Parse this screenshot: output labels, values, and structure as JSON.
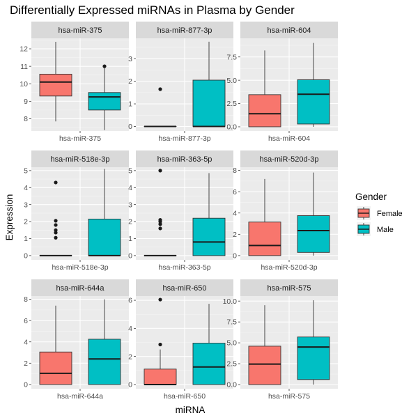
{
  "chart_data": {
    "type": "boxplot",
    "title": "Differentially Expressed miRNAs in Plasma by Gender",
    "xlabel": "miRNA",
    "ylabel": "Expression",
    "legend": {
      "title": "Gender",
      "placement": "right",
      "entries": [
        {
          "name": "Female",
          "color": "#F8766D"
        },
        {
          "name": "Male",
          "color": "#00BFC4"
        }
      ]
    },
    "facets": [
      {
        "name": "hsa-miR-375",
        "ylim": [
          7.3,
          12.6
        ],
        "yticks": [
          8,
          9,
          10,
          11,
          12
        ],
        "yticklabels": [
          "8",
          "9",
          "10",
          "11",
          "12"
        ],
        "boxes": [
          {
            "group": "Female",
            "whisker_low": 7.85,
            "q1": 9.3,
            "median": 10.1,
            "q3": 10.55,
            "whisker_high": 12.4,
            "outliers": []
          },
          {
            "group": "Male",
            "whisker_low": 7.35,
            "q1": 8.5,
            "median": 9.25,
            "q3": 9.5,
            "whisker_high": 10.9,
            "outliers": [
              11.0
            ]
          }
        ]
      },
      {
        "name": "hsa-miR-877-3p",
        "ylim": [
          -0.2,
          3.9
        ],
        "yticks": [
          0,
          1,
          2,
          3
        ],
        "yticklabels": [
          "0",
          "1",
          "2",
          "3"
        ],
        "boxes": [
          {
            "group": "Female",
            "whisker_low": 0.0,
            "q1": 0.0,
            "median": 0.0,
            "q3": 0.0,
            "whisker_high": 0.0,
            "outliers": [
              1.65
            ]
          },
          {
            "group": "Male",
            "whisker_low": 0.0,
            "q1": 0.0,
            "median": 0.0,
            "q3": 2.05,
            "whisker_high": 3.75,
            "outliers": []
          }
        ]
      },
      {
        "name": "hsa-miR-604",
        "ylim": [
          -0.45,
          9.5
        ],
        "yticks": [
          0,
          2.5,
          5,
          7.5
        ],
        "yticklabels": [
          "0.0",
          "2.5",
          "5.0",
          "7.5"
        ],
        "boxes": [
          {
            "group": "Female",
            "whisker_low": 0.0,
            "q1": 0.0,
            "median": 1.4,
            "q3": 3.45,
            "whisker_high": 8.2,
            "outliers": []
          },
          {
            "group": "Male",
            "whisker_low": 0.0,
            "q1": 0.3,
            "median": 3.5,
            "q3": 5.05,
            "whisker_high": 9.0,
            "outliers": []
          }
        ]
      },
      {
        "name": "hsa-miR-518e-3p",
        "ylim": [
          -0.25,
          5.2
        ],
        "yticks": [
          0,
          1,
          2,
          3,
          4,
          5
        ],
        "yticklabels": [
          "0",
          "1",
          "2",
          "3",
          "4",
          "5"
        ],
        "boxes": [
          {
            "group": "Female",
            "whisker_low": 0.0,
            "q1": 0.0,
            "median": 0.0,
            "q3": 0.0,
            "whisker_high": 0.0,
            "outliers": [
              1.05,
              1.35,
              1.5,
              1.8,
              2.05,
              4.3
            ]
          },
          {
            "group": "Male",
            "whisker_low": 0.0,
            "q1": 0.0,
            "median": 0.0,
            "q3": 2.15,
            "whisker_high": 5.1,
            "outliers": []
          }
        ]
      },
      {
        "name": "hsa-miR-363-5p",
        "ylim": [
          -0.25,
          5.2
        ],
        "yticks": [
          0,
          1,
          2,
          3,
          4,
          5
        ],
        "yticklabels": [
          "0",
          "1",
          "2",
          "3",
          "4",
          "5"
        ],
        "boxes": [
          {
            "group": "Female",
            "whisker_low": 0.0,
            "q1": 0.0,
            "median": 0.0,
            "q3": 0.0,
            "whisker_high": 0.0,
            "outliers": [
              1.6,
              1.85,
              2.0,
              2.1,
              5.0
            ]
          },
          {
            "group": "Male",
            "whisker_low": 0.0,
            "q1": 0.0,
            "median": 0.8,
            "q3": 2.2,
            "whisker_high": 4.85,
            "outliers": []
          }
        ]
      },
      {
        "name": "hsa-miR-520d-3p",
        "ylim": [
          -0.4,
          8.3
        ],
        "yticks": [
          0,
          2,
          4,
          6,
          8
        ],
        "yticklabels": [
          "0",
          "2",
          "4",
          "6",
          "8"
        ],
        "boxes": [
          {
            "group": "Female",
            "whisker_low": 0.0,
            "q1": 0.0,
            "median": 0.95,
            "q3": 3.15,
            "whisker_high": 7.2,
            "outliers": []
          },
          {
            "group": "Male",
            "whisker_low": 0.0,
            "q1": 0.3,
            "median": 2.35,
            "q3": 3.75,
            "whisker_high": 7.8,
            "outliers": []
          }
        ]
      },
      {
        "name": "hsa-miR-644a",
        "ylim": [
          -0.4,
          8.3
        ],
        "yticks": [
          0,
          2,
          4,
          6,
          8
        ],
        "yticklabels": [
          "0",
          "2",
          "4",
          "6",
          "8"
        ],
        "boxes": [
          {
            "group": "Female",
            "whisker_low": 0.0,
            "q1": 0.0,
            "median": 1.05,
            "q3": 3.05,
            "whisker_high": 7.4,
            "outliers": []
          },
          {
            "group": "Male",
            "whisker_low": 0.0,
            "q1": 0.0,
            "median": 2.4,
            "q3": 4.25,
            "whisker_high": 8.0,
            "outliers": []
          }
        ]
      },
      {
        "name": "hsa-miR-650",
        "ylim": [
          -0.3,
          6.3
        ],
        "yticks": [
          0,
          2,
          4,
          6
        ],
        "yticklabels": [
          "0",
          "2",
          "4",
          "6"
        ],
        "boxes": [
          {
            "group": "Female",
            "whisker_low": 0.0,
            "q1": 0.0,
            "median": 0.0,
            "q3": 1.1,
            "whisker_high": 2.5,
            "outliers": [
              2.85,
              6.05
            ]
          },
          {
            "group": "Male",
            "whisker_low": 0.0,
            "q1": 0.0,
            "median": 1.25,
            "q3": 2.95,
            "whisker_high": 5.75,
            "outliers": []
          }
        ]
      },
      {
        "name": "hsa-miR-575",
        "ylim": [
          -0.5,
          10.6
        ],
        "yticks": [
          0,
          2.5,
          5,
          7.5,
          10
        ],
        "yticklabels": [
          "0.0",
          "2.5",
          "5.0",
          "7.5",
          "10.0"
        ],
        "boxes": [
          {
            "group": "Female",
            "whisker_low": 0.0,
            "q1": 0.0,
            "median": 2.45,
            "q3": 4.6,
            "whisker_high": 9.5,
            "outliers": []
          },
          {
            "group": "Male",
            "whisker_low": 0.0,
            "q1": 0.6,
            "median": 4.5,
            "q3": 5.7,
            "whisker_high": 10.1,
            "outliers": []
          }
        ]
      }
    ]
  }
}
